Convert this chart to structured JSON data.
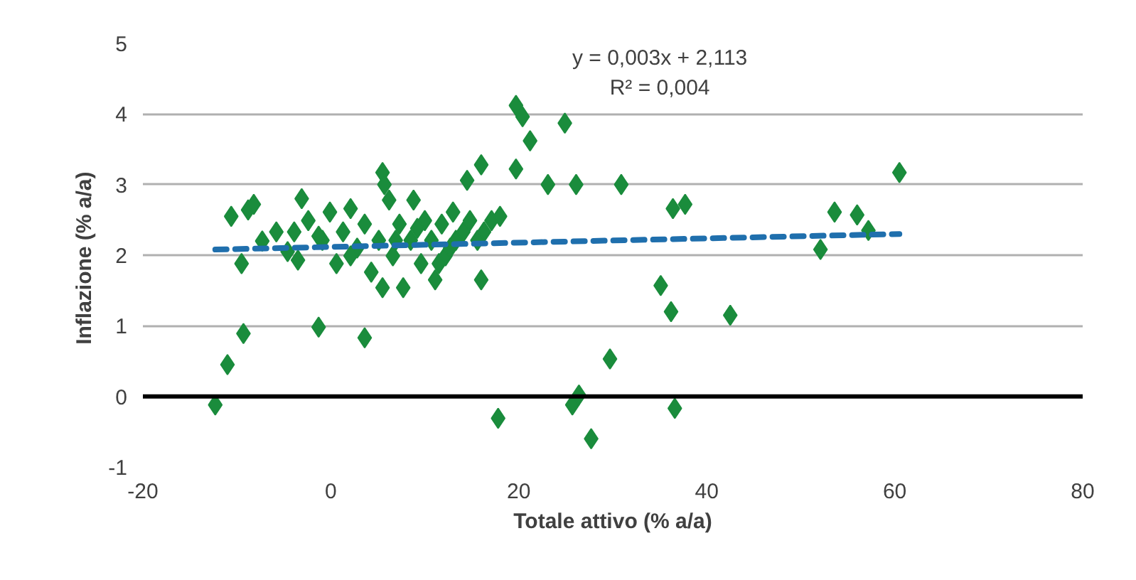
{
  "chart_data": {
    "type": "scatter",
    "xlabel": "Totale attivo (% a/a)",
    "ylabel": "Inflazione  (% a/a)",
    "xlim": [
      -20,
      80
    ],
    "xticks": [
      -20,
      0,
      20,
      40,
      60,
      80
    ],
    "ylim": [
      -1,
      5
    ],
    "yticks": [
      -1,
      0,
      1,
      2,
      3,
      4,
      5
    ],
    "grid": "y",
    "marker": "diamond",
    "annotations": [
      "y = 0,003x + 2,113",
      "R² = 0,004"
    ],
    "ref_lines": [
      {
        "axis": "y",
        "value": 0,
        "color": "#000000"
      }
    ],
    "series": [
      {
        "color": "#1a8c3c",
        "x": [
          -12.3,
          -11.0,
          -9.3,
          -10.6,
          -9.5,
          -8.8,
          -8.2,
          -7.3,
          -5.8,
          -4.6,
          -3.5,
          -3.1,
          -1.3,
          3.6,
          5.5,
          16.0,
          16.0,
          14.5,
          17.8,
          19.7,
          20.4,
          21.2,
          19.7,
          23.1,
          24.9,
          26.1,
          25.7,
          26.4,
          27.7,
          29.7,
          30.9,
          35.1,
          36.2,
          36.6,
          36.4,
          37.7,
          42.5,
          52.1,
          53.6,
          56.0,
          57.2,
          60.5,
          -2.4,
          -0.9,
          -0.1,
          0.6,
          1.3,
          2.1,
          2.8,
          3.6,
          4.3,
          5.1,
          5.5,
          6.2,
          6.6,
          7.3,
          7.7,
          8.5,
          8.8,
          9.6,
          10.0,
          10.7,
          11.1,
          11.8,
          12.2,
          13.0,
          13.3,
          14.1,
          14.8,
          16.3,
          17.1,
          18.0,
          15.6,
          -1.3,
          2.1,
          6.9,
          9.2,
          11.5,
          12.7,
          5.7,
          -3.9
        ],
        "values": [
          -0.12,
          0.45,
          0.89,
          2.55,
          1.88,
          2.64,
          2.72,
          2.2,
          2.33,
          2.05,
          1.93,
          2.8,
          0.98,
          0.83,
          3.17,
          1.65,
          3.28,
          3.06,
          -0.31,
          4.12,
          3.96,
          3.62,
          3.22,
          3.0,
          3.87,
          3.0,
          -0.12,
          0.02,
          -0.6,
          0.53,
          3.0,
          1.57,
          1.2,
          -0.17,
          2.66,
          2.72,
          1.15,
          2.08,
          2.61,
          2.57,
          2.35,
          3.17,
          2.49,
          2.21,
          2.61,
          1.88,
          2.33,
          2.66,
          2.1,
          2.44,
          1.76,
          2.21,
          1.54,
          2.78,
          1.99,
          2.44,
          1.54,
          2.21,
          2.78,
          1.88,
          2.49,
          2.21,
          1.65,
          2.44,
          1.99,
          2.61,
          2.21,
          2.33,
          2.49,
          2.33,
          2.49,
          2.55,
          2.21,
          2.27,
          1.99,
          2.21,
          2.38,
          1.88,
          2.1,
          3.0,
          2.33
        ]
      },
      {
        "type": "line",
        "color": "#1f6fad",
        "line_style": "dashed",
        "marker": "none",
        "x": [
          -12.3,
          60.5
        ],
        "values": [
          2.08,
          2.3
        ]
      }
    ]
  }
}
